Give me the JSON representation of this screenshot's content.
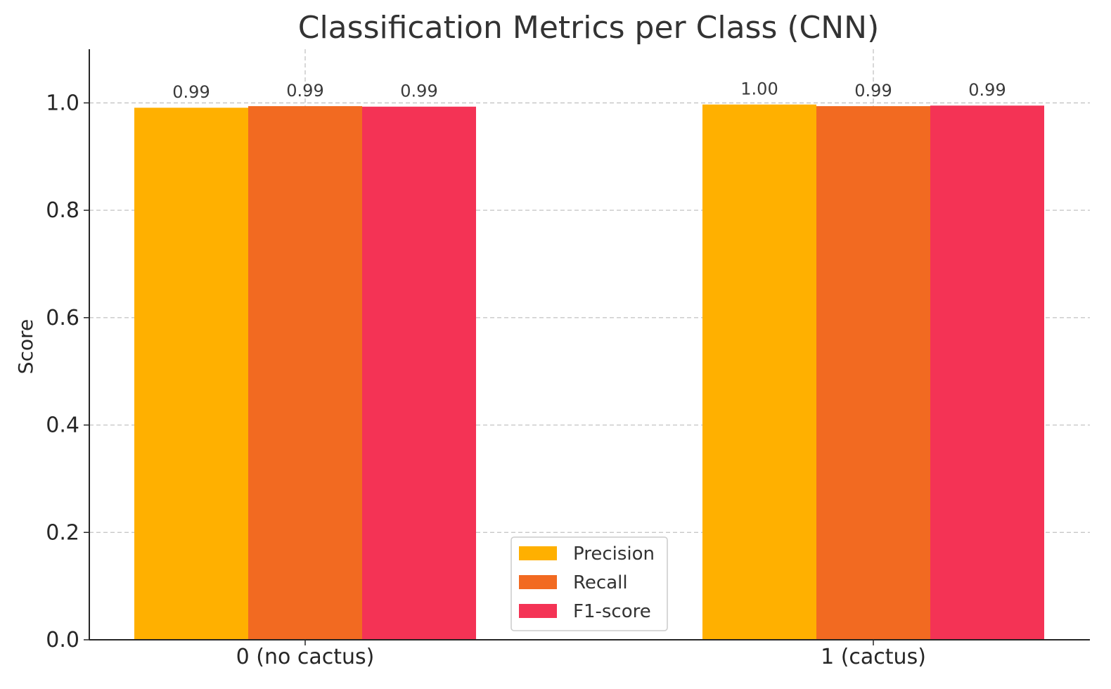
{
  "chart_data": {
    "type": "bar",
    "title": "Classification Metrics per Class (CNN)",
    "xlabel": "",
    "ylabel": "Score",
    "ylim": [
      0,
      1.1
    ],
    "yticks": [
      "0.0",
      "0.2",
      "0.4",
      "0.6",
      "0.8",
      "1.0"
    ],
    "categories": [
      "0 (no cactus)",
      "1 (cactus)"
    ],
    "series": [
      {
        "name": "Precision",
        "color": "#FFB000",
        "values": [
          0.991,
          0.997
        ],
        "labels": [
          "0.99",
          "1.00"
        ]
      },
      {
        "name": "Recall",
        "color": "#F26A21",
        "values": [
          0.994,
          0.994
        ],
        "labels": [
          "0.99",
          "0.99"
        ]
      },
      {
        "name": "F1-score",
        "color": "#F43355",
        "values": [
          0.993,
          0.995
        ],
        "labels": [
          "0.99",
          "0.99"
        ]
      }
    ],
    "grid": true,
    "legend_position": "lower-center"
  }
}
